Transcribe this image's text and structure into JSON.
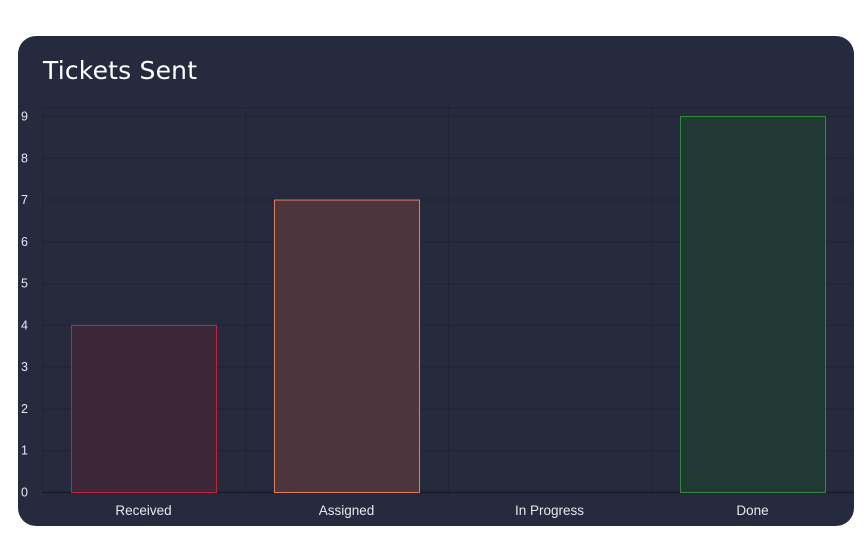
{
  "card": {
    "title": "Tickets Sent"
  },
  "chart_data": {
    "type": "bar",
    "title": "Tickets Sent",
    "categories": [
      "Received",
      "Assigned",
      "In Progress",
      "Done"
    ],
    "values": [
      4,
      7,
      0,
      9
    ],
    "ylim": [
      0,
      9
    ],
    "yticks": [
      0,
      1,
      2,
      3,
      4,
      5,
      6,
      7,
      8,
      9
    ],
    "grid": true,
    "legend": "none",
    "colors": {
      "fill": [
        "#3c2739",
        "#4c353d",
        "#3a3a4a",
        "#213a34"
      ],
      "stroke": [
        "#c3243a",
        "#e37c5c",
        "#888888",
        "#2f8a3e"
      ]
    }
  }
}
